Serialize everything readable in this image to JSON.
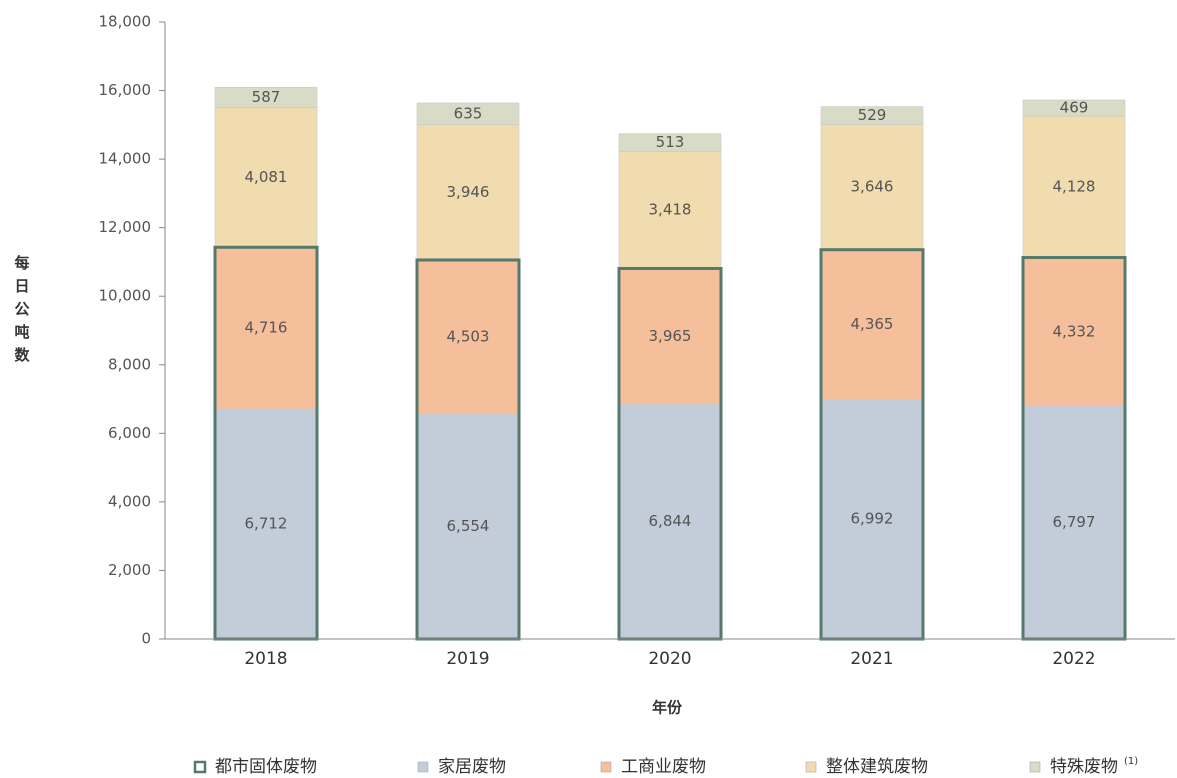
{
  "chart_data": {
    "type": "stacked-bar",
    "categories": [
      "2018",
      "2019",
      "2020",
      "2021",
      "2022"
    ],
    "series": [
      {
        "name": "家居废物",
        "color": "#c3ccd9",
        "values": [
          6712,
          6554,
          6844,
          6992,
          6797
        ],
        "value_labels": [
          "6,712",
          "6,554",
          "6,844",
          "6,992",
          "6,797"
        ]
      },
      {
        "name": "工商业废物",
        "color": "#f6bf9c",
        "values": [
          4716,
          4503,
          3965,
          4365,
          4332
        ],
        "value_labels": [
          "4,716",
          "4,503",
          "3,965",
          "4,365",
          "4,332"
        ]
      },
      {
        "name": "整体建筑废物",
        "color": "#f0dcae",
        "values": [
          4081,
          3946,
          3418,
          3646,
          4128
        ],
        "value_labels": [
          "4,081",
          "3,946",
          "3,418",
          "3,646",
          "4,128"
        ]
      },
      {
        "name": "特殊废物",
        "name_note": "(1)",
        "color": "#d8dcc6",
        "values": [
          587,
          635,
          513,
          529,
          469
        ]
      }
    ],
    "outline": {
      "name": "都市固体废物",
      "color": "#557a6c",
      "series": [
        0,
        1
      ]
    },
    "xlabel": "年份",
    "ylabel": "每日公吨数",
    "ylim": [
      0,
      18000
    ],
    "yticks": [
      0,
      {
        "value": 2000,
        "label": "2,000"
      },
      {
        "value": 4000,
        "label": "4,000"
      },
      {
        "value": 6000,
        "label": "6,000"
      },
      {
        "value": 8000,
        "label": "8,000"
      },
      {
        "value": 10000,
        "label": "10,000"
      },
      {
        "value": 12000,
        "label": "12,000"
      },
      {
        "value": 14000,
        "label": "14,000"
      },
      {
        "value": 16000,
        "label": "16,000"
      },
      {
        "value": 18000,
        "label": "18,000"
      }
    ]
  }
}
